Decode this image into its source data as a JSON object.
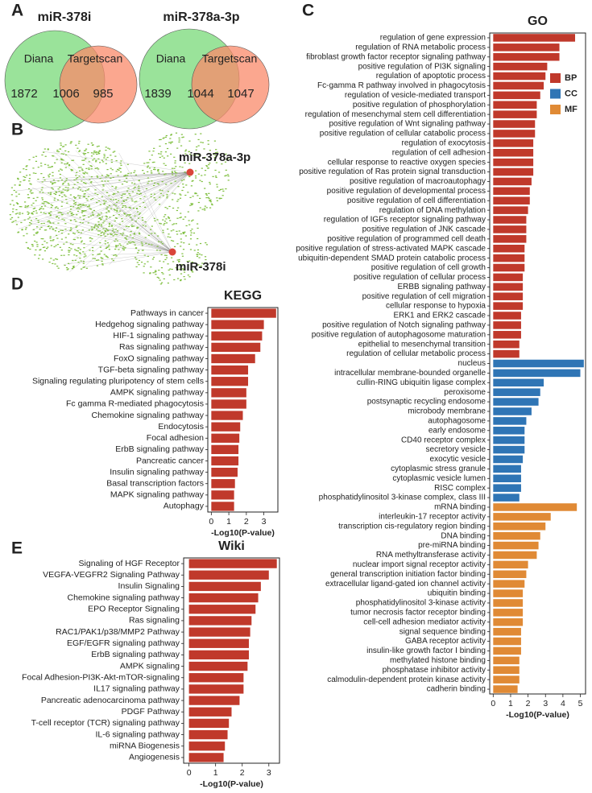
{
  "chart_data": [
    {
      "type": "venn",
      "panel": "A",
      "title": "miR-378i",
      "sets": [
        "Diana",
        "Targetscan"
      ],
      "colors": [
        "#8fe08f",
        "#f98a6a"
      ],
      "values": [
        1872,
        1006,
        985
      ]
    },
    {
      "type": "venn",
      "title": "miR-378a-3p",
      "sets": [
        "Diana",
        "Targetscan"
      ],
      "colors": [
        "#8fe08f",
        "#f98a6a"
      ],
      "values": [
        1839,
        1044,
        1047
      ]
    },
    {
      "type": "network",
      "panel": "B",
      "nodes": [
        "miR-378a-3p",
        "miR-378i"
      ],
      "node_color": "#d9453a",
      "target_color": "#7fbf3f"
    },
    {
      "type": "hbar",
      "panel": "C",
      "title": "GO",
      "xlabel": "-Log10(P-value)",
      "xlim": [
        -0.2,
        5.3
      ],
      "xticks": [
        0,
        1,
        2,
        3,
        4,
        5
      ],
      "legend": "upper right",
      "highlight_color": "#e8321e",
      "series": [
        {
          "name": "BP",
          "color": "#c0392b",
          "highlighted": [
            15,
            27,
            31,
            32
          ],
          "categories": [
            "regulation of gene expression",
            "regulation of RNA metabolic process",
            "fibroblast growth factor receptor signaling pathway",
            "positive regulation of PI3K signaling",
            "regulation of apoptotic process",
            "Fc-gamma R pathway involved in phagocytosis",
            "regulation of vesicle-mediated transport",
            "positive regulation of phosphorylation",
            "regulation of mesenchymal stem cell differentiation",
            "positive regulation of Wnt signaling pathway",
            "positive regulation of cellular catabolic process",
            "regulation of exocytosis",
            "regulation of cell adhesion",
            "cellular response to reactive oxygen species",
            "positive regulation of Ras protein signal transduction",
            "positive regulation of macroautophagy",
            "positive regulation of developmental process",
            "positive regulation of cell differentiation",
            "regulation of DNA methylation",
            "regulation of IGFs receptor signaling pathway",
            "positive regulation of JNK cascade",
            "positive regulation of programmed cell death",
            "positive regulation of stress-activated MAPK cascade",
            "ubiquitin-dependent SMAD protein catabolic process",
            "positive regulation of cell growth",
            "positive regulation of cellular process",
            "ERBB signaling pathway",
            "positive regulation of cell migration",
            "cellular response to hypoxia",
            "ERK1 and ERK2 cascade",
            "positive regulation of Notch signaling pathway",
            "positive regulation of autophagosome maturation",
            "epithelial to mesenchymal transition",
            "regulation of cellular metabolic process"
          ],
          "values": [
            4.7,
            3.8,
            3.8,
            3.1,
            3.0,
            2.9,
            2.7,
            2.5,
            2.5,
            2.4,
            2.4,
            2.3,
            2.3,
            2.3,
            2.3,
            2.2,
            2.1,
            2.1,
            2.0,
            1.9,
            1.9,
            1.9,
            1.8,
            1.8,
            1.8,
            1.7,
            1.7,
            1.7,
            1.7,
            1.6,
            1.6,
            1.6,
            1.5,
            1.5
          ]
        },
        {
          "name": "CC",
          "color": "#2f75b5",
          "highlighted": [
            6
          ],
          "categories": [
            "nucleus",
            "intracellular membrane-bounded organelle",
            "cullin-RING ubiquitin ligase complex",
            "peroxisome",
            "postsynaptic recycling endosome",
            "microbody membrane",
            "autophagosome",
            "early endosome",
            "CD40 receptor complex",
            "secretory vesicle",
            "exocytic vesicle",
            "cytoplasmic stress granule",
            "cytoplasmic vesicle lumen",
            "RISC complex",
            "phosphatidylinositol 3-kinase complex, class III"
          ],
          "values": [
            5.2,
            5.0,
            2.9,
            2.7,
            2.6,
            2.2,
            1.9,
            1.8,
            1.8,
            1.8,
            1.7,
            1.6,
            1.6,
            1.6,
            1.5
          ]
        },
        {
          "name": "MF",
          "color": "#e08a35",
          "highlighted": [],
          "categories": [
            "mRNA binding",
            "interleukin-17 receptor activity",
            "transcription cis-regulatory region binding",
            "DNA binding",
            "pre-miRNA binding",
            "RNA methyltransferase activity",
            "nuclear import signal receptor activity",
            "general transcription initiation factor binding",
            "extracellular ligand-gated ion channel activity",
            "ubiquitin binding",
            "phosphatidylinositol 3-kinase activity",
            "tumor necrosis factor receptor binding",
            "cell-cell adhesion mediator activity",
            "signal sequence binding",
            "GABA receptor activity",
            "insulin-like growth factor I binding",
            "methylated histone binding",
            "phosphatase inhibitor activity",
            "calmodulin-dependent protein kinase activity",
            "cadherin binding"
          ],
          "values": [
            4.8,
            3.3,
            3.0,
            2.7,
            2.6,
            2.5,
            2.0,
            1.9,
            1.8,
            1.7,
            1.7,
            1.7,
            1.7,
            1.6,
            1.6,
            1.6,
            1.5,
            1.5,
            1.5,
            1.4
          ]
        }
      ]
    },
    {
      "type": "hbar",
      "panel": "D",
      "title": "KEGG",
      "xlabel": "-Log10(P-value)",
      "xlim": [
        -0.2,
        3.8
      ],
      "xticks": [
        0,
        1,
        2,
        3
      ],
      "highlight_color": "#e8321e",
      "series": [
        {
          "color": "#c0392b",
          "highlighted": [
            5,
            17
          ],
          "categories": [
            "Pathways in cancer",
            "Hedgehog signaling pathway",
            "HIF-1 signaling pathway",
            "Ras signaling pathway",
            "FoxO signaling pathway",
            "TGF-beta signaling pathway",
            "Signaling regulating pluripotency of stem cells",
            "AMPK signaling pathway",
            "Fc gamma R-mediated phagocytosis",
            "Chemokine signaling pathway",
            "Endocytosis",
            "Focal adhesion",
            "ErbB signaling pathway",
            "Pancreatic cancer",
            "Insulin signaling pathway",
            "Basal transcription factors",
            "MAPK signaling pathway",
            "Autophagy"
          ],
          "values": [
            3.7,
            3.0,
            2.9,
            2.8,
            2.5,
            2.1,
            2.1,
            2.0,
            2.0,
            1.8,
            1.65,
            1.6,
            1.55,
            1.55,
            1.5,
            1.35,
            1.3,
            1.3
          ]
        }
      ]
    },
    {
      "type": "hbar",
      "panel": "E",
      "title": "Wiki",
      "xlabel": "-Log10(P-value)",
      "xlim": [
        -0.2,
        3.4
      ],
      "xticks": [
        0,
        1,
        2,
        3
      ],
      "highlight_color": "#e8321e",
      "series": [
        {
          "color": "#c0392b",
          "highlighted": [
            10
          ],
          "categories": [
            "Signaling of HGF Receptor",
            "VEGFA-VEGFR2 Signaling Pathway",
            "Insulin Signaling",
            "Chemokine signaling pathway",
            "EPO Receptor Signaling",
            "Ras signaling",
            "RAC1/PAK1/p38/MMP2 Pathway",
            "EGF/EGFR signaling pathway",
            "ErbB signaling pathway",
            "AMPK signaling",
            "Focal Adhesion-PI3K-Akt-mTOR-signaling",
            "IL17 signaling pathway",
            "Pancreatic adenocarcinoma pathway",
            "PDGF Pathway",
            "T-cell receptor (TCR) signaling pathway",
            "IL-6 signaling pathway",
            "miRNA Biogenesis",
            "Angiogenesis"
          ],
          "values": [
            3.3,
            3.0,
            2.7,
            2.6,
            2.5,
            2.35,
            2.3,
            2.25,
            2.25,
            2.2,
            2.05,
            2.05,
            1.9,
            1.6,
            1.5,
            1.45,
            1.35,
            1.3
          ]
        }
      ]
    }
  ]
}
